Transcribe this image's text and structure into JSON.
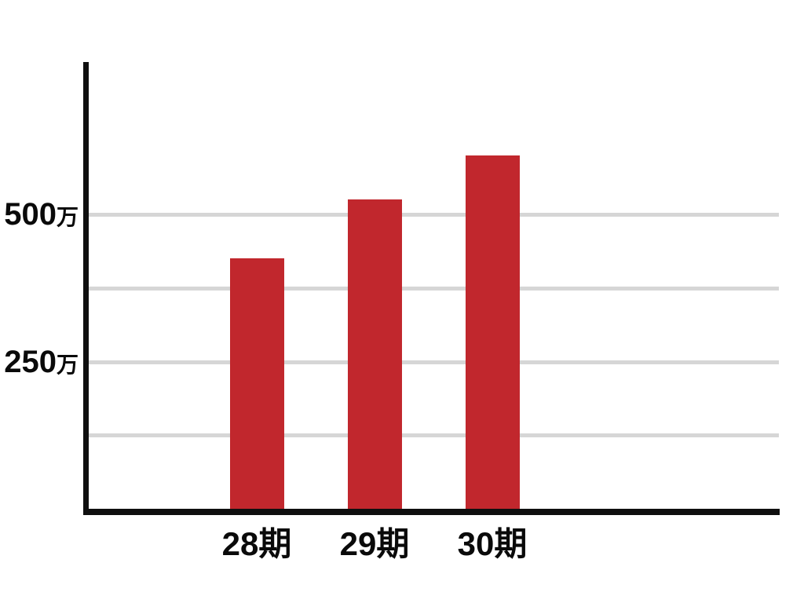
{
  "page": {
    "background": "#ffffff"
  },
  "chart_data": {
    "type": "bar",
    "categories": [
      "28期",
      "29期",
      "30期"
    ],
    "values": [
      425,
      525,
      600
    ],
    "unit": "万",
    "title": "",
    "xlabel": "",
    "ylabel": "",
    "ylim": [
      0,
      760
    ],
    "grid": "horizontal",
    "gridline_values": [
      125,
      250,
      375,
      500
    ],
    "ytick_labels": [
      {
        "value": 500,
        "label": "500万"
      },
      {
        "value": 250,
        "label": "250万"
      }
    ],
    "legend": "none",
    "colors": {
      "bar": "#c1272d",
      "gridline": "#d6d6d6",
      "axis": "#0f0f0f",
      "text": "#0a0a0a",
      "background": "#ffffff"
    }
  }
}
